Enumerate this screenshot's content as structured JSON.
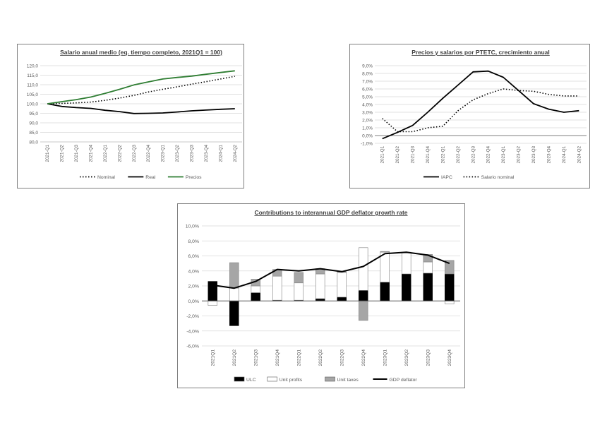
{
  "chart_data": [
    {
      "type": "line",
      "title": "Salario anual medio (eq. tiempo completo, 2021Q1 = 100)",
      "categories": [
        "2021-Q1",
        "2021-Q2",
        "2021-Q3",
        "2021-Q4",
        "2022-Q1",
        "2022-Q2",
        "2022-Q3",
        "2022-Q4",
        "2023-Q1",
        "2023-Q2",
        "2023-Q3",
        "2023-Q4",
        "2024-Q1",
        "2024-Q2"
      ],
      "ylim": [
        80,
        120
      ],
      "yticks": [
        "80,0",
        "85,0",
        "90,0",
        "95,0",
        "100,0",
        "105,0",
        "110,0",
        "115,0",
        "120,0"
      ],
      "grid": true,
      "legend_position": "bottom",
      "series": [
        {
          "name": "Nominal",
          "style": "dotted",
          "color": "#000000",
          "values": [
            100.0,
            100.2,
            100.5,
            100.9,
            101.8,
            103.0,
            104.4,
            106.2,
            107.6,
            108.9,
            110.3,
            111.6,
            113.0,
            114.4
          ]
        },
        {
          "name": "Real",
          "style": "solid",
          "color": "#000000",
          "values": [
            100.0,
            98.6,
            98.0,
            97.6,
            96.6,
            95.9,
            94.9,
            95.0,
            95.2,
            95.7,
            96.3,
            96.7,
            97.1,
            97.4
          ]
        },
        {
          "name": "Precios",
          "style": "solid",
          "color": "#2e7d32",
          "values": [
            100.0,
            101.1,
            102.2,
            103.5,
            105.5,
            107.6,
            109.9,
            111.5,
            113.0,
            113.8,
            114.5,
            115.5,
            116.4,
            117.3
          ]
        }
      ]
    },
    {
      "type": "line",
      "title": "Precios y salarios por PTETC, crecimiento anual",
      "categories": [
        "2021-Q1",
        "2021-Q2",
        "2021-Q3",
        "2021-Q4",
        "2022-Q1",
        "2022-Q2",
        "2022-Q3",
        "2022-Q4",
        "2023-Q1",
        "2023-Q2",
        "2023-Q3",
        "2023-Q4",
        "2024-Q1",
        "2024-Q2"
      ],
      "ylim": [
        -1,
        9
      ],
      "yticks": [
        "-1,0%",
        "0,0%",
        "1,0%",
        "2,0%",
        "3,0%",
        "4,0%",
        "5,0%",
        "6,0%",
        "7,0%",
        "8,0%",
        "9,0%"
      ],
      "grid": true,
      "legend_position": "bottom",
      "series": [
        {
          "name": "IAPC",
          "style": "solid",
          "color": "#000000",
          "values": [
            -0.4,
            0.4,
            1.3,
            3.0,
            4.8,
            6.5,
            8.2,
            8.3,
            7.5,
            5.8,
            4.1,
            3.4,
            3.0,
            3.2
          ]
        },
        {
          "name": "Salario nominal",
          "style": "dotted",
          "color": "#000000",
          "values": [
            2.2,
            0.5,
            0.5,
            1.0,
            1.2,
            3.2,
            4.6,
            5.4,
            6.0,
            5.8,
            5.7,
            5.3,
            5.1,
            5.1
          ]
        }
      ]
    },
    {
      "type": "bar",
      "stacked": true,
      "title": "Contributions to interannual GDP deflator growth rate",
      "categories": [
        "2021Q1",
        "2021Q2",
        "2021Q3",
        "2021Q4",
        "2022Q1",
        "2022Q2",
        "2022Q3",
        "2022Q4",
        "2023Q1",
        "2023Q2",
        "2023Q3",
        "2023Q4"
      ],
      "ylim": [
        -6,
        10
      ],
      "yticks": [
        "-6,0%",
        "-4,0%",
        "-2,0%",
        "0,0%",
        "2,0%",
        "4,0%",
        "6,0%",
        "8,0%",
        "10,0%"
      ],
      "grid": true,
      "legend_position": "bottom",
      "series": [
        {
          "name": "ULC",
          "kind": "bar",
          "color": "#000000",
          "values": [
            2.6,
            -3.3,
            1.1,
            0.1,
            0.1,
            0.3,
            0.5,
            1.4,
            2.5,
            3.6,
            3.7,
            3.6
          ]
        },
        {
          "name": "Unit profits",
          "kind": "bar",
          "color": "#ffffff",
          "values": [
            -0.6,
            1.7,
            0.9,
            3.2,
            2.3,
            3.3,
            3.3,
            5.7,
            4.0,
            2.8,
            1.5,
            -0.4
          ]
        },
        {
          "name": "Unit taxes",
          "kind": "bar",
          "color": "#a6a6a6",
          "values": [
            0.0,
            3.4,
            0.9,
            0.9,
            1.4,
            0.7,
            0.1,
            -2.6,
            0.1,
            0.1,
            1.0,
            1.8
          ]
        },
        {
          "name": "GDP deflator",
          "kind": "line",
          "color": "#000000",
          "values": [
            2.1,
            1.7,
            2.6,
            4.2,
            4.0,
            4.3,
            3.9,
            4.6,
            6.3,
            6.5,
            6.1,
            5.0
          ]
        }
      ]
    }
  ]
}
